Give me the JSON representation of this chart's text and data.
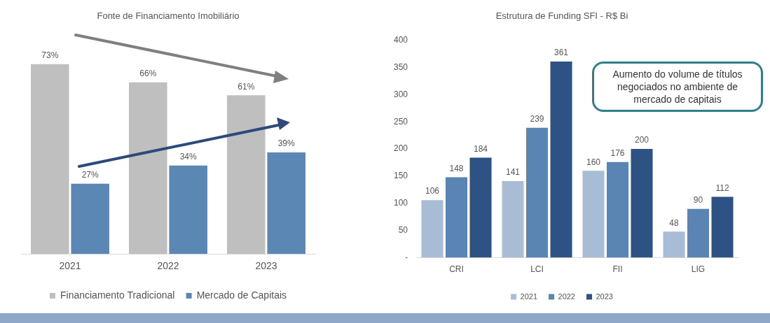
{
  "chart_data": [
    {
      "type": "bar",
      "title": "Fonte de Financiamento Imobiliário",
      "categories": [
        "2021",
        "2022",
        "2023"
      ],
      "series": [
        {
          "name": "Financiamento Tradicional",
          "color": "#bfbfbf",
          "values": [
            73,
            66,
            61
          ],
          "value_labels": [
            "73%",
            "66%",
            "61%"
          ]
        },
        {
          "name": "Mercado de Capitais",
          "color": "#5b87b4",
          "values": [
            27,
            34,
            39
          ],
          "value_labels": [
            "27%",
            "34%",
            "39%"
          ]
        }
      ],
      "tick_labels": "x",
      "legend": "bottom",
      "grid": false
    },
    {
      "type": "bar",
      "title": "Estrutura de Funding SFI - R$ Bi",
      "categories": [
        "CRI",
        "LCI",
        "FII",
        "LIG"
      ],
      "series": [
        {
          "name": "2021",
          "color": "#a9bcd6",
          "values": [
            106,
            141,
            160,
            48
          ]
        },
        {
          "name": "2022",
          "color": "#5a84b3",
          "values": [
            148,
            239,
            176,
            90
          ]
        },
        {
          "name": "2023",
          "color": "#2e5283",
          "values": [
            184,
            361,
            200,
            112
          ]
        }
      ],
      "ylim": [
        0,
        400
      ],
      "yticks": [
        {
          "value": 0,
          "label": "-"
        },
        50,
        100,
        150,
        200,
        250,
        300,
        350,
        400
      ],
      "data_labels": true,
      "legend": "bottom",
      "grid": false,
      "annotations": [
        "Aumento do volume de títulos negociados no ambiente de mercado de capitais"
      ]
    }
  ]
}
